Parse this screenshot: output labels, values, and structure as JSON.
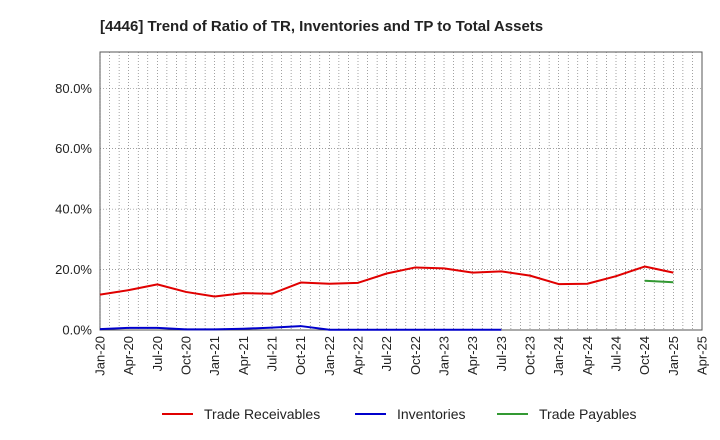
{
  "chart_data": {
    "type": "line",
    "title": "[4446]  Trend of Ratio of TR, Inventories and TP to Total Assets",
    "xlabel": "",
    "ylabel": "",
    "ylim": [
      0,
      0.92
    ],
    "yticks": [
      "0.0%",
      "20.0%",
      "40.0%",
      "60.0%",
      "80.0%"
    ],
    "ytick_values": [
      0,
      0.2,
      0.4,
      0.6,
      0.8
    ],
    "x": [
      "Jan-20",
      "Apr-20",
      "Jul-20",
      "Oct-20",
      "Jan-21",
      "Apr-21",
      "Jul-21",
      "Oct-21",
      "Jan-22",
      "Apr-22",
      "Jul-22",
      "Oct-22",
      "Jan-23",
      "Apr-23",
      "Jul-23",
      "Oct-23",
      "Jan-24",
      "Apr-24",
      "Jul-24",
      "Oct-24",
      "Jan-25",
      "Apr-25"
    ],
    "xticks": [
      "Jan-20",
      "Apr-20",
      "Jul-20",
      "Oct-20",
      "Jan-21",
      "Apr-21",
      "Jul-21",
      "Oct-21",
      "Jan-22",
      "Apr-22",
      "Jul-22",
      "Oct-22",
      "Jan-23",
      "Apr-23",
      "Jul-23",
      "Oct-23",
      "Jan-24",
      "Apr-24",
      "Jul-24",
      "Oct-24",
      "Jan-25",
      "Apr-25"
    ],
    "grid": true,
    "legend_position": "bottom",
    "series": [
      {
        "name": "Trade Receivables",
        "color": "#e00000",
        "values": [
          0.117,
          0.132,
          0.151,
          0.126,
          0.111,
          0.122,
          0.12,
          0.157,
          0.153,
          0.156,
          0.187,
          0.207,
          0.204,
          0.19,
          0.194,
          0.18,
          0.152,
          0.153,
          0.178,
          0.21,
          0.19,
          null
        ]
      },
      {
        "name": "Inventories",
        "color": "#0000cc",
        "values": [
          0.003,
          0.007,
          0.007,
          0.002,
          0.002,
          0.004,
          0.008,
          0.013,
          0.001,
          0.001,
          0.001,
          0.001,
          0.001,
          0.001,
          0.001,
          null,
          null,
          null,
          null,
          null,
          null,
          null
        ]
      },
      {
        "name": "Trade Payables",
        "color": "#339933",
        "values": [
          null,
          null,
          null,
          null,
          null,
          null,
          null,
          null,
          null,
          null,
          null,
          null,
          null,
          null,
          null,
          null,
          null,
          null,
          null,
          0.163,
          0.158,
          null
        ]
      }
    ]
  }
}
